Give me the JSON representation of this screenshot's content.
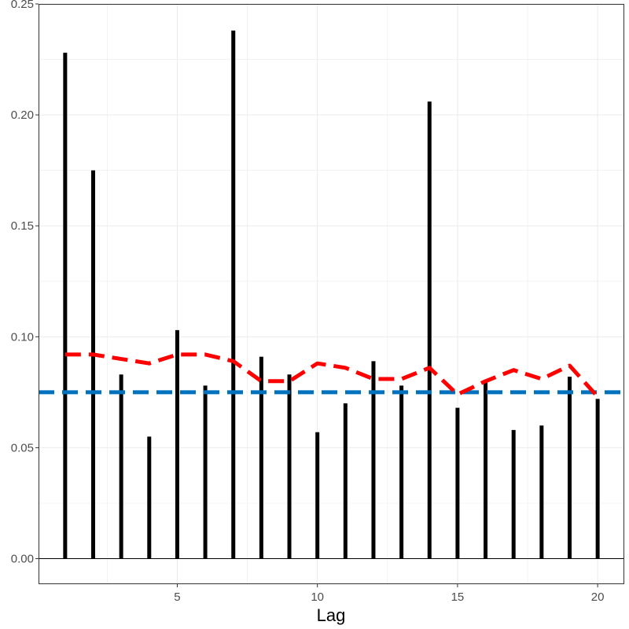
{
  "chart_data": {
    "type": "bar",
    "title": "",
    "xlabel": "Lag",
    "ylabel": "",
    "xlim": [
      0.05,
      20.95
    ],
    "ylim": [
      -0.0115,
      0.25
    ],
    "x_ticks": [
      5,
      10,
      15,
      20
    ],
    "y_ticks": [
      0.0,
      0.05,
      0.1,
      0.15,
      0.2,
      0.25
    ],
    "y_tick_labels": [
      "0.00",
      "0.05",
      "0.10",
      "0.15",
      "0.20",
      "0.25"
    ],
    "grid": true,
    "zero_line": true,
    "lags": [
      1,
      2,
      3,
      4,
      5,
      6,
      7,
      8,
      9,
      10,
      11,
      12,
      13,
      14,
      15,
      16,
      17,
      18,
      19,
      20
    ],
    "values": [
      0.228,
      0.175,
      0.083,
      0.055,
      0.103,
      0.078,
      0.238,
      0.091,
      0.083,
      0.057,
      0.07,
      0.089,
      0.078,
      0.206,
      0.068,
      0.08,
      0.058,
      0.06,
      0.082,
      0.072
    ],
    "red_line": {
      "x": [
        1,
        2,
        3,
        4,
        5,
        6,
        7,
        8,
        9,
        10,
        11,
        12,
        13,
        14,
        15,
        16,
        17,
        18,
        19,
        20
      ],
      "y": [
        0.092,
        0.092,
        0.09,
        0.088,
        0.092,
        0.092,
        0.089,
        0.08,
        0.08,
        0.088,
        0.086,
        0.081,
        0.081,
        0.086,
        0.074,
        0.08,
        0.085,
        0.081,
        0.087,
        0.073
      ],
      "color": "#ff0000",
      "style": "dashed"
    },
    "blue_line": {
      "y": 0.075,
      "color": "#0072bd",
      "style": "dashed"
    },
    "bar_color": "#000000",
    "grid_color": "#ebebeb"
  }
}
